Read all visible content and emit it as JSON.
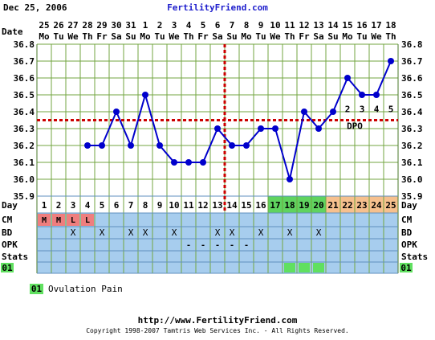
{
  "header": {
    "date": "Dec 25, 2006",
    "site": "FertilityFriend.com"
  },
  "labels": {
    "date": "Date",
    "day": "Day",
    "cm": "CM",
    "bd": "BD",
    "opk": "OPK",
    "stats": "Stats",
    "code": "01",
    "dpo": "DPO"
  },
  "legend": {
    "code": "01",
    "text": "Ovulation Pain"
  },
  "footer": {
    "url": "http://www.FertilityFriend.com",
    "copyright": "Copyright 1998-2007 Tamtris Web Services Inc. - All Rights Reserved."
  },
  "colors": {
    "line": "#0000cc",
    "grid": "#73a640",
    "red_line": "#cc0000",
    "lower_bg": "#a7cdee",
    "ovulation_bg": "#5fd35f",
    "luteal_bg": "#f6c08e",
    "follicular_bg": "#ffffff",
    "cm_bg": "#ef7e7e",
    "stats_green": "#60e060"
  },
  "chart_data": {
    "type": "line",
    "ylim": [
      35.9,
      36.8
    ],
    "yticks": [
      "36.8",
      "36.7",
      "36.6",
      "36.5",
      "36.4",
      "36.3",
      "36.2",
      "36.1",
      "36.0",
      "35.9"
    ],
    "dates": [
      "25",
      "26",
      "27",
      "28",
      "29",
      "30",
      "31",
      "1",
      "2",
      "3",
      "4",
      "5",
      "6",
      "7",
      "8",
      "9",
      "10",
      "11",
      "12",
      "13",
      "14",
      "15",
      "16",
      "17",
      "18"
    ],
    "weekdays": [
      "Mo",
      "Tu",
      "We",
      "Th",
      "Fr",
      "Sa",
      "Su",
      "Mo",
      "Tu",
      "We",
      "Th",
      "Fr",
      "Sa",
      "Su",
      "Mo",
      "Tu",
      "We",
      "Th",
      "Fr",
      "Sa",
      "Su",
      "Mo",
      "Tu",
      "We",
      "Th"
    ],
    "cycle_days": [
      "1",
      "2",
      "3",
      "4",
      "5",
      "6",
      "7",
      "8",
      "9",
      "10",
      "11",
      "12",
      "13",
      "14",
      "15",
      "16",
      "17",
      "18",
      "19",
      "20",
      "21",
      "22",
      "23",
      "24",
      "25"
    ],
    "day_phase": [
      "f",
      "f",
      "f",
      "f",
      "f",
      "f",
      "f",
      "f",
      "f",
      "f",
      "f",
      "f",
      "f",
      "f",
      "f",
      "f",
      "o",
      "o",
      "o",
      "o",
      "l",
      "l",
      "l",
      "l",
      "l"
    ],
    "temps": [
      null,
      null,
      null,
      36.2,
      36.2,
      36.4,
      36.2,
      36.5,
      36.2,
      36.1,
      36.1,
      36.1,
      36.3,
      36.2,
      36.2,
      36.3,
      36.3,
      36.0,
      36.4,
      36.3,
      36.4,
      36.6,
      36.5,
      36.5,
      36.7
    ],
    "coverline": 36.35,
    "ovulation_day": 13,
    "dpo_labels": [
      {
        "day": 22,
        "label": "2"
      },
      {
        "day": 23,
        "label": "3"
      },
      {
        "day": 24,
        "label": "4"
      },
      {
        "day": 25,
        "label": "5"
      }
    ],
    "cm": [
      "M",
      "M",
      "L",
      "L",
      "",
      "",
      "",
      "",
      "",
      "",
      "",
      "",
      "",
      "",
      "",
      "",
      "",
      "",
      "",
      "",
      "",
      "",
      "",
      "",
      ""
    ],
    "bd": [
      "",
      "",
      "X",
      "",
      "X",
      "",
      "X",
      "X",
      "",
      "X",
      "",
      "",
      "X",
      "X",
      "",
      "X",
      "",
      "X",
      "",
      "X",
      "",
      "",
      "",
      "",
      ""
    ],
    "opk": [
      "",
      "",
      "",
      "",
      "",
      "",
      "",
      "",
      "",
      "",
      "-",
      "-",
      "-",
      "-",
      "-",
      "",
      "",
      "",
      "",
      "",
      "",
      "",
      "",
      "",
      ""
    ],
    "symptom_01": [
      false,
      false,
      false,
      false,
      false,
      false,
      false,
      false,
      false,
      false,
      false,
      false,
      false,
      false,
      false,
      false,
      false,
      true,
      true,
      true,
      false,
      false,
      false,
      false,
      false
    ]
  }
}
